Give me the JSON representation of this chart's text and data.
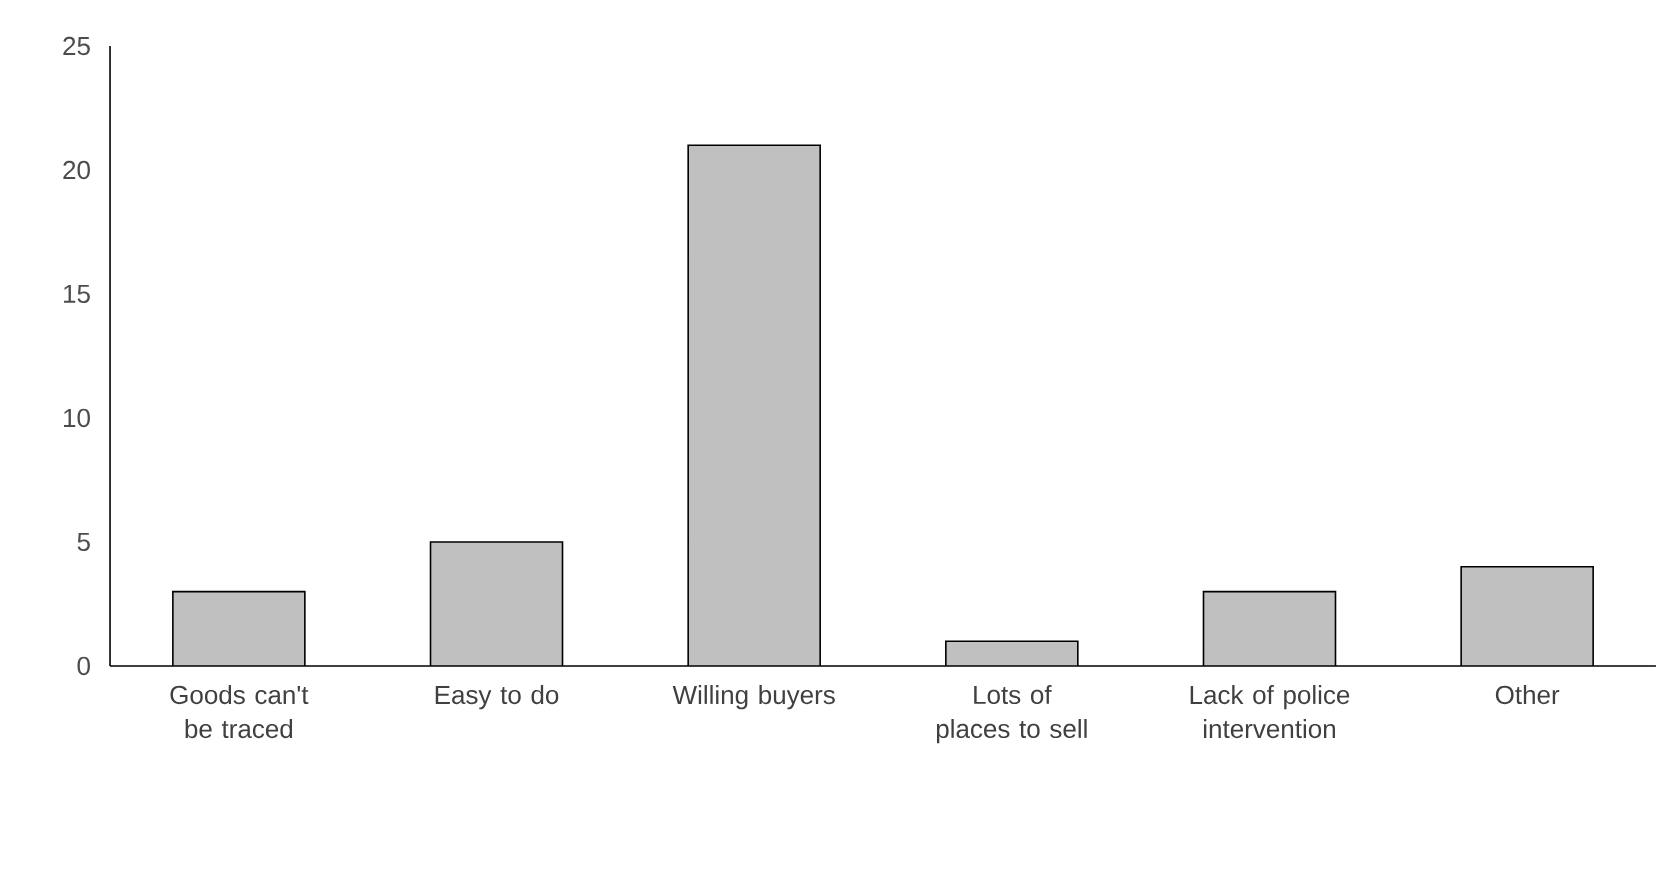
{
  "chart_data": {
    "type": "bar",
    "categories": [
      "Goods can't be traced",
      "Easy to do",
      "Willing buyers",
      "Lots of places to sell",
      "Lack of police intervention",
      "Other"
    ],
    "values": [
      3,
      5,
      21,
      1,
      3,
      4
    ],
    "color": "#c0c0c0",
    "ylim": [
      0,
      25
    ],
    "yticks": [
      0,
      5,
      10,
      15,
      20,
      25
    ],
    "grid": false
  }
}
